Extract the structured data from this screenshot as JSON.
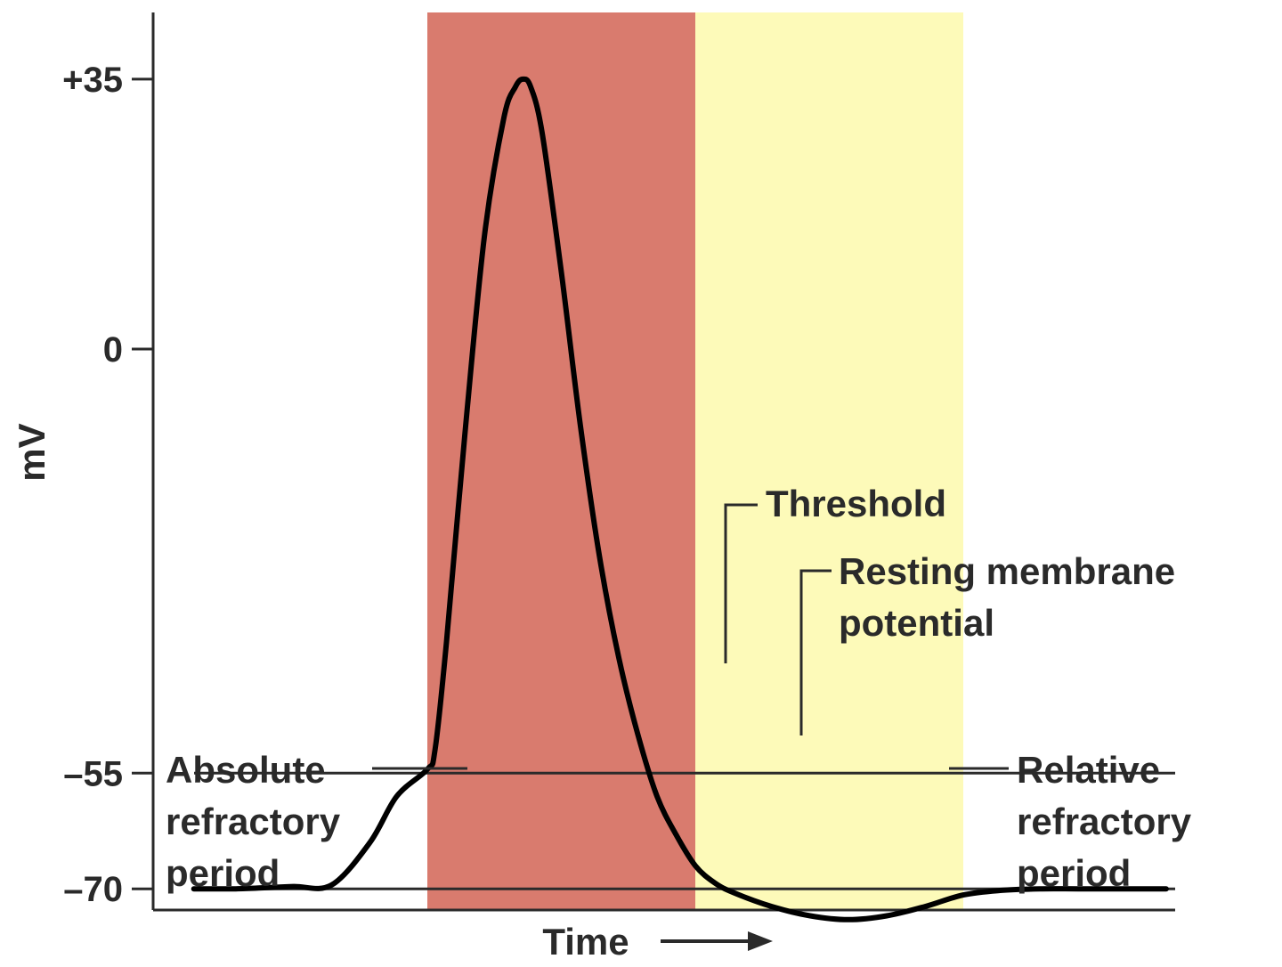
{
  "chart_data": {
    "type": "line",
    "title": "",
    "xlabel": "Time",
    "ylabel": "mV",
    "ylim": [
      -87,
      43
    ],
    "y_ticks": [
      {
        "value": 35,
        "label": "+35"
      },
      {
        "value": 0,
        "label": "0"
      },
      {
        "value": -55,
        "label": "–55"
      },
      {
        "value": -70,
        "label": "–70"
      }
    ],
    "reference_lines": [
      {
        "name": "threshold",
        "value": -55
      },
      {
        "name": "resting",
        "value": -70
      }
    ],
    "regions": [
      {
        "name": "absolute-refractory",
        "x_start": 6,
        "x_end": 13,
        "color": "#d97b6e"
      },
      {
        "name": "relative-refractory",
        "x_start": 13,
        "x_end": 20,
        "color": "#fdfab9"
      }
    ],
    "series": [
      {
        "x": [
          -0.1,
          0.4,
          1.0,
          1.6,
          2.5,
          3.5,
          4.5,
          5.2,
          6.0,
          6.2,
          6.5,
          7.0,
          7.5,
          8.0,
          8.3,
          8.5,
          8.7,
          9.0,
          9.5,
          10.0,
          10.5,
          11.0,
          11.5,
          12.0,
          12.5,
          13.0,
          13.5,
          14.0,
          15.0,
          16.0,
          17.0,
          18.0,
          19.0,
          20.0,
          21.0,
          22.0,
          23.0,
          24.0,
          25.0,
          25.3
        ],
        "y": [
          -70,
          -70,
          -70,
          -69.9,
          -69.7,
          -69.5,
          -64,
          -58,
          -54.5,
          -52,
          -38,
          -10,
          15,
          30,
          34,
          35,
          34,
          28,
          10,
          -10,
          -27,
          -40,
          -50,
          -58,
          -63,
          -67,
          -69.2,
          -70.5,
          -72.3,
          -73.5,
          -74,
          -73.5,
          -72.3,
          -70.8,
          -70.2,
          -70,
          -70,
          -70,
          -70,
          -70
        ]
      }
    ],
    "annotations": {
      "threshold": "Threshold",
      "resting_line1": "Resting membrane",
      "resting_line2": "potential",
      "absolute_line1": "Absolute",
      "absolute_line2": "refractory",
      "absolute_line3": "period",
      "relative_line1": "Relative",
      "relative_line2": "refractory",
      "relative_line3": "period"
    },
    "colors": {
      "absolute_refractory": "#d97b6e",
      "relative_refractory": "#fdfab9",
      "lines": "#2a2a2a"
    }
  }
}
